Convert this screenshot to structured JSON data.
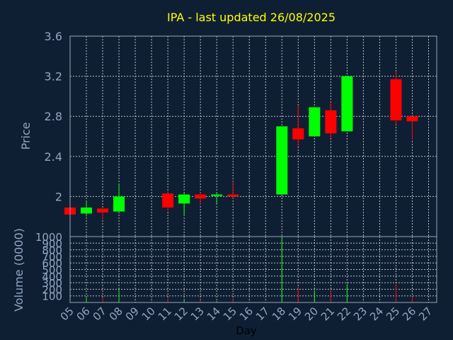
{
  "chart_data": [
    {
      "type": "candlestick",
      "title": "IPA - last updated 26/08/2025",
      "ylabel": "Price",
      "ylim": [
        1.6,
        3.6
      ],
      "yticks": [
        "3.6",
        "3.2",
        "2.8",
        "2.4",
        "2"
      ],
      "grid": true,
      "up_color": "#00ff00",
      "down_color": "#ff0000",
      "candles": [
        {
          "x": "05",
          "open": 1.89,
          "high": 1.89,
          "low": 1.81,
          "close": 1.82
        },
        {
          "x": "06",
          "open": 1.83,
          "high": 1.95,
          "low": 1.8,
          "close": 1.89
        },
        {
          "x": "07",
          "open": 1.88,
          "high": 1.88,
          "low": 1.77,
          "close": 1.84
        },
        {
          "x": "08",
          "open": 1.85,
          "high": 2.12,
          "low": 1.85,
          "close": 2.0
        },
        {
          "x": "11",
          "open": 2.03,
          "high": 2.05,
          "low": 1.86,
          "close": 1.89
        },
        {
          "x": "12",
          "open": 1.93,
          "high": 2.03,
          "low": 1.82,
          "close": 2.02
        },
        {
          "x": "13",
          "open": 2.02,
          "high": 2.04,
          "low": 1.92,
          "close": 1.98
        },
        {
          "x": "14",
          "open": 2.01,
          "high": 2.04,
          "low": 1.93,
          "close": 2.02
        },
        {
          "x": "15",
          "open": 2.02,
          "high": 2.15,
          "low": 1.98,
          "close": 2.0
        },
        {
          "x": "18",
          "open": 2.02,
          "high": 2.7,
          "low": 2.02,
          "close": 2.7
        },
        {
          "x": "19",
          "open": 2.68,
          "high": 2.91,
          "low": 2.5,
          "close": 2.57
        },
        {
          "x": "20",
          "open": 2.6,
          "high": 2.89,
          "low": 2.6,
          "close": 2.89
        },
        {
          "x": "21",
          "open": 2.86,
          "high": 2.94,
          "low": 2.58,
          "close": 2.63
        },
        {
          "x": "22",
          "open": 2.65,
          "high": 3.2,
          "low": 2.65,
          "close": 3.2
        },
        {
          "x": "25",
          "open": 3.17,
          "high": 3.25,
          "low": 2.72,
          "close": 2.76
        },
        {
          "x": "26",
          "open": 2.8,
          "high": 2.8,
          "low": 2.57,
          "close": 2.75
        }
      ]
    },
    {
      "type": "bar",
      "ylabel": "Volume (0000)",
      "xlabel": "Day",
      "ylim": [
        0,
        1000
      ],
      "yticks": [
        "1000",
        "900",
        "800",
        "700",
        "600",
        "500",
        "400",
        "300",
        "200",
        "100"
      ],
      "categories": [
        "05",
        "06",
        "07",
        "08",
        "09",
        "10",
        "11",
        "12",
        "13",
        "14",
        "15",
        "16",
        "17",
        "18",
        "19",
        "20",
        "21",
        "22",
        "23",
        "24",
        "25",
        "26",
        "27"
      ],
      "volumes": [
        {
          "x": "05",
          "value": 20,
          "direction": "down"
        },
        {
          "x": "06",
          "value": 90,
          "direction": "up"
        },
        {
          "x": "07",
          "value": 80,
          "direction": "down"
        },
        {
          "x": "08",
          "value": 200,
          "direction": "up"
        },
        {
          "x": "11",
          "value": 60,
          "direction": "down"
        },
        {
          "x": "12",
          "value": 30,
          "direction": "up"
        },
        {
          "x": "13",
          "value": 40,
          "direction": "down"
        },
        {
          "x": "14",
          "value": 20,
          "direction": "up"
        },
        {
          "x": "15",
          "value": 60,
          "direction": "down"
        },
        {
          "x": "18",
          "value": 1000,
          "direction": "up"
        },
        {
          "x": "19",
          "value": 240,
          "direction": "down"
        },
        {
          "x": "20",
          "value": 180,
          "direction": "up"
        },
        {
          "x": "21",
          "value": 180,
          "direction": "down"
        },
        {
          "x": "22",
          "value": 280,
          "direction": "up"
        },
        {
          "x": "25",
          "value": 280,
          "direction": "down"
        },
        {
          "x": "26",
          "value": 90,
          "direction": "down"
        }
      ],
      "grid": true
    }
  ]
}
